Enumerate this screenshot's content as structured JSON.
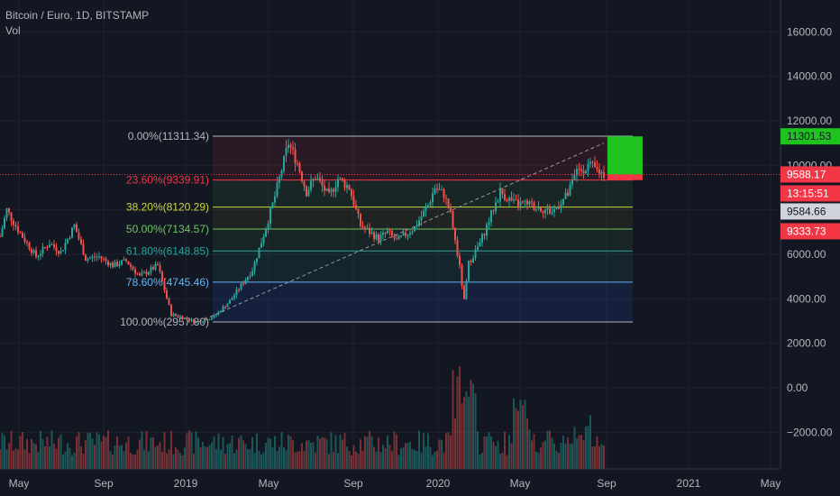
{
  "chart_data": {
    "type": "candlestick",
    "title": "Bitcoin / Euro, 1D, BITSTAMP",
    "subtitle": "Vol",
    "x_ticks": [
      "May",
      "Sep",
      "2019",
      "May",
      "Sep",
      "2020",
      "May",
      "Sep",
      "2021",
      "May"
    ],
    "y_ticks": [
      "16000.00",
      "14000.00",
      "12000.00",
      "10000.00",
      "8000.00",
      "6000.00",
      "4000.00",
      "2000.00",
      "0.00",
      "−2000.00"
    ],
    "ylim": [
      -3400,
      17000
    ],
    "fib_levels": [
      {
        "label": "0.00%(11311.34)",
        "value": 11311.34,
        "color": "#b2b5be"
      },
      {
        "label": "23.60%(9339.91)",
        "value": 9339.91,
        "color": "#f23645"
      },
      {
        "label": "38.20%(8120.29)",
        "value": 8120.29,
        "color": "#cdd63f"
      },
      {
        "label": "50.00%(7134.57)",
        "value": 7134.57,
        "color": "#6cc55f"
      },
      {
        "label": "61.80%(6148.85)",
        "value": 6148.85,
        "color": "#26a69a"
      },
      {
        "label": "78.60%(4745.46)",
        "value": 4745.46,
        "color": "#64b5f6"
      },
      {
        "label": "100.00%(2957.80)",
        "value": 2957.8,
        "color": "#b2b5be"
      }
    ],
    "price_path": [
      [
        -2,
        6000
      ],
      [
        3,
        8000
      ],
      [
        8,
        7100
      ],
      [
        16,
        5900
      ],
      [
        22,
        6500
      ],
      [
        27,
        6100
      ],
      [
        33,
        7300
      ],
      [
        38,
        5800
      ],
      [
        44,
        5900
      ],
      [
        50,
        5500
      ],
      [
        56,
        5700
      ],
      [
        62,
        5000
      ],
      [
        70,
        5500
      ],
      [
        76,
        3300
      ],
      [
        80,
        3200
      ],
      [
        87,
        2950
      ],
      [
        95,
        3200
      ],
      [
        102,
        3900
      ],
      [
        112,
        5300
      ],
      [
        118,
        7200
      ],
      [
        122,
        8600
      ],
      [
        128,
        11000
      ],
      [
        132,
        10100
      ],
      [
        136,
        8800
      ],
      [
        140,
        9500
      ],
      [
        146,
        8600
      ],
      [
        150,
        9400
      ],
      [
        155,
        9000
      ],
      [
        160,
        7300
      ],
      [
        168,
        6700
      ],
      [
        172,
        7000
      ],
      [
        176,
        6600
      ],
      [
        184,
        7200
      ],
      [
        190,
        8200
      ],
      [
        193,
        9000
      ],
      [
        197,
        8700
      ],
      [
        200,
        7800
      ],
      [
        204,
        5400
      ],
      [
        206,
        3900
      ],
      [
        208,
        5600
      ],
      [
        213,
        6500
      ],
      [
        218,
        7800
      ],
      [
        222,
        8800
      ],
      [
        228,
        8300
      ],
      [
        236,
        8200
      ],
      [
        245,
        7900
      ],
      [
        252,
        8700
      ],
      [
        256,
        9700
      ],
      [
        261,
        10000
      ],
      [
        268,
        9600
      ]
    ],
    "trend_line": [
      [
        88,
        2957.8
      ],
      [
        268,
        11000
      ]
    ],
    "current_price": "9588.17",
    "countdown": "13:15:51",
    "position_target": "11301.53",
    "position_mid": "9584.66",
    "stop_price": "9333.73",
    "position_box": {
      "top": 11301.53,
      "entry": 9584.66,
      "stop": 9333.73
    },
    "volume_baseline": -3400,
    "colors": {
      "up": "#26a69a",
      "down": "#ef5350",
      "background": "#131722",
      "target": "#1fc21f",
      "stop": "#f23645"
    }
  }
}
